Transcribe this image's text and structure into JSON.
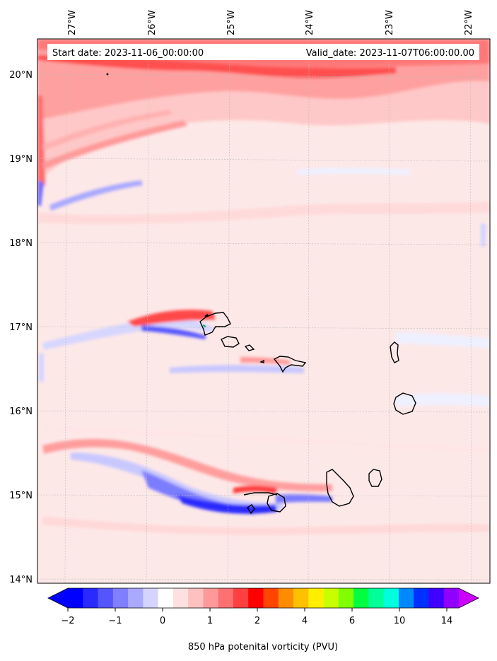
{
  "header": {
    "start_label": "Start date: 2023-11-06_00:00:00",
    "valid_label": "Valid_date: 2023-11-07T06:00:00.00"
  },
  "map": {
    "longitude_labels": [
      "27°W",
      "26°W",
      "25°W",
      "24°W",
      "23°W",
      "22°W"
    ],
    "latitude_labels": [
      "20°N",
      "19°N",
      "18°N",
      "17°N",
      "16°N",
      "15°N",
      "14°N"
    ],
    "gridlines": true,
    "background_field_color": "#fde8e8"
  },
  "colorbar": {
    "label": "850 hPa potenital vorticity (PVU)",
    "tick_labels": [
      "−2",
      "−1",
      "0",
      "1",
      "2",
      "4",
      "6",
      "10",
      "14"
    ],
    "extend": "both",
    "colors": [
      "#0000ff",
      "#2a2aff",
      "#5555ff",
      "#7f7fff",
      "#a9a9ff",
      "#d4d4ff",
      "#ffffff",
      "#ffe0e0",
      "#ffc0c0",
      "#ff9999",
      "#ff7070",
      "#ff4040",
      "#ff0000",
      "#ff4500",
      "#ff8c00",
      "#ffc000",
      "#ffee00",
      "#c8ff00",
      "#80ff00",
      "#00ff40",
      "#00ff99",
      "#00ffdd",
      "#0088ff",
      "#0030ff",
      "#4000ff",
      "#9000ff"
    ],
    "under_color": "#0000ff",
    "over_color": "#cc00ff"
  }
}
